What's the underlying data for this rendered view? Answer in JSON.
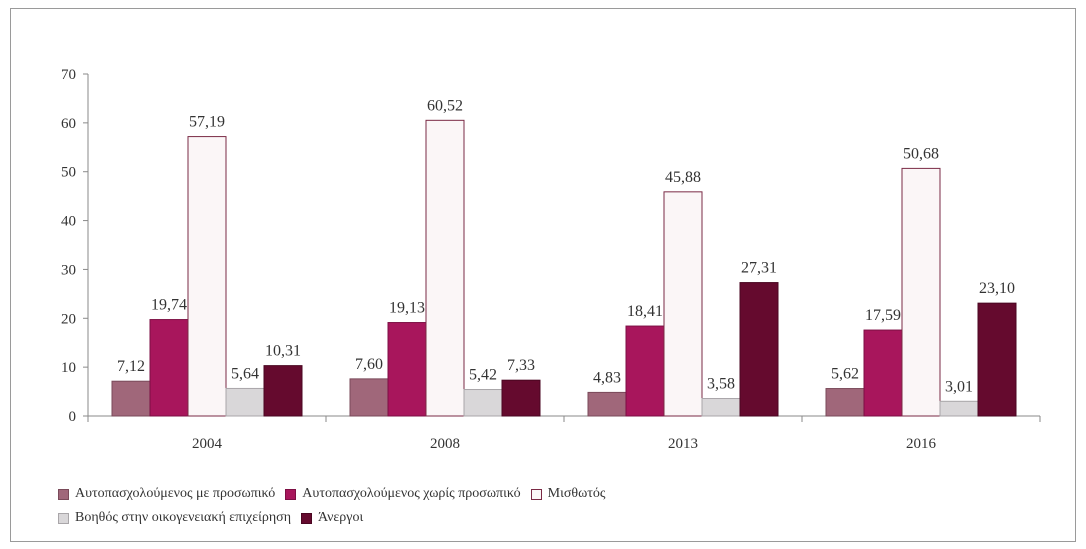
{
  "chart_data": {
    "type": "bar",
    "title": "",
    "xlabel": "",
    "ylabel": "",
    "categories": [
      "2004",
      "2008",
      "2013",
      "2016"
    ],
    "ylim": [
      0,
      70
    ],
    "yticks": [
      0,
      10,
      20,
      30,
      40,
      50,
      60,
      70
    ],
    "grid": false,
    "legend_position": "bottom",
    "series": [
      {
        "name": "Αυτοπασχολούμενος με προσωπικό",
        "values": [
          7.12,
          7.6,
          4.83,
          5.62
        ],
        "labels": [
          "7,12",
          "7,60",
          "4,83",
          "5,62"
        ],
        "color": "#a0677a",
        "stroke": "#7a4a5a"
      },
      {
        "name": "Αυτοπασχολούμενος χωρίς προσωπικό",
        "values": [
          19.74,
          19.13,
          18.41,
          17.59
        ],
        "labels": [
          "19,74",
          "19,13",
          "18,41",
          "17,59"
        ],
        "color": "#a8165c",
        "stroke": "#7d0f44"
      },
      {
        "name": "Μισθωτός",
        "values": [
          57.19,
          60.52,
          45.88,
          50.68
        ],
        "labels": [
          "57,19",
          "60,52",
          "45,88",
          "50,68"
        ],
        "color": "#fbf6f7",
        "stroke": "#7a2a45"
      },
      {
        "name": "Βοηθός στην οικογενειακή επιχείρηση",
        "values": [
          5.64,
          5.42,
          3.58,
          3.01
        ],
        "labels": [
          "5,64",
          "5,42",
          "3,58",
          "3,01"
        ],
        "color": "#d9d7d9",
        "stroke": "#a9a6a9"
      },
      {
        "name": "Άνεργοι",
        "values": [
          10.31,
          7.33,
          27.31,
          23.1
        ],
        "labels": [
          "10,31",
          "7,33",
          "27,31",
          "23,10"
        ],
        "color": "#650a2e",
        "stroke": "#4a0621"
      }
    ]
  }
}
